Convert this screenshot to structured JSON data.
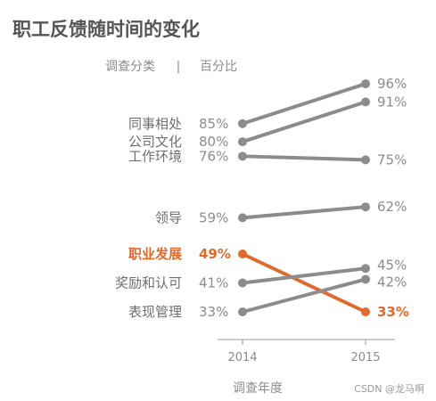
{
  "chart_data": {
    "type": "line",
    "title": "职工反馈随时间的变化",
    "subtitle_left": "调查分类",
    "subtitle_sep": "|",
    "subtitle_right": "百分比",
    "xlabel": "调查年度",
    "x": [
      "2014",
      "2015"
    ],
    "ylim": [
      30,
      100
    ],
    "series": [
      {
        "name": "同事相处",
        "values": [
          85,
          96
        ],
        "labels": [
          "85%",
          "96%"
        ]
      },
      {
        "name": "公司文化",
        "values": [
          80,
          91
        ],
        "labels": [
          "80%",
          "91%"
        ]
      },
      {
        "name": "工作环境",
        "values": [
          76,
          75
        ],
        "labels": [
          "76%",
          "75%"
        ]
      },
      {
        "name": "领导",
        "values": [
          59,
          62
        ],
        "labels": [
          "59%",
          "62%"
        ]
      },
      {
        "name": "职业发展",
        "values": [
          49,
          33
        ],
        "labels": [
          "49%",
          "33%"
        ],
        "highlight": true
      },
      {
        "name": "奖励和认可",
        "values": [
          41,
          45
        ],
        "labels": [
          "41%",
          "45%"
        ]
      },
      {
        "name": "表现管理",
        "values": [
          33,
          42
        ],
        "labels": [
          "33%",
          "42%"
        ]
      }
    ],
    "colors": {
      "base": "#8c8c8c",
      "highlight": "#e06a2c"
    },
    "grid": false,
    "legend": "none"
  },
  "watermark": "CSDN @龙马啊"
}
